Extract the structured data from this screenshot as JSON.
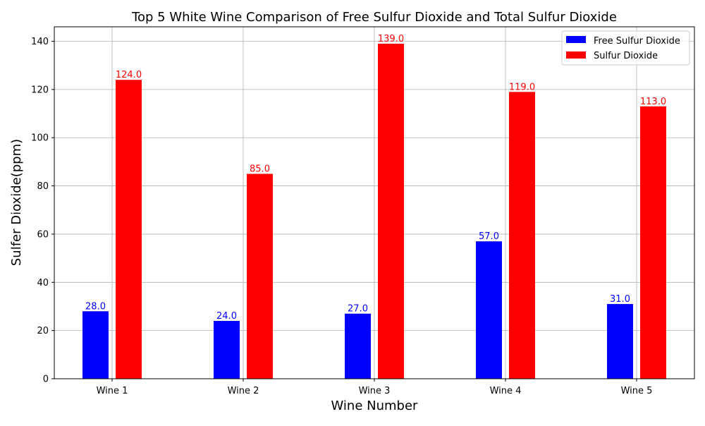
{
  "chart_data": {
    "type": "bar",
    "title": "Top 5 White Wine Comparison of Free Sulfur Dioxide and Total Sulfur Dioxide",
    "xlabel": "Wine Number",
    "ylabel": "Sulfer Dioxide(ppm)",
    "categories": [
      "Wine 1",
      "Wine 2",
      "Wine 3",
      "Wine 4",
      "Wine 5"
    ],
    "series": [
      {
        "name": "Free Sulfur Dioxide",
        "color": "#0000ff",
        "values": [
          28.0,
          24.0,
          27.0,
          57.0,
          31.0
        ],
        "labels": [
          "28.0",
          "24.0",
          "27.0",
          "57.0",
          "31.0"
        ]
      },
      {
        "name": "Sulfur Dioxide",
        "color": "#ff0000",
        "values": [
          124.0,
          85.0,
          139.0,
          119.0,
          113.0
        ],
        "labels": [
          "124.0",
          "85.0",
          "139.0",
          "119.0",
          "113.0"
        ]
      }
    ],
    "ylim": [
      0,
      146
    ],
    "yticks": [
      0,
      20,
      40,
      60,
      80,
      100,
      120,
      140
    ],
    "grid": true,
    "legend_position": "top-right"
  }
}
